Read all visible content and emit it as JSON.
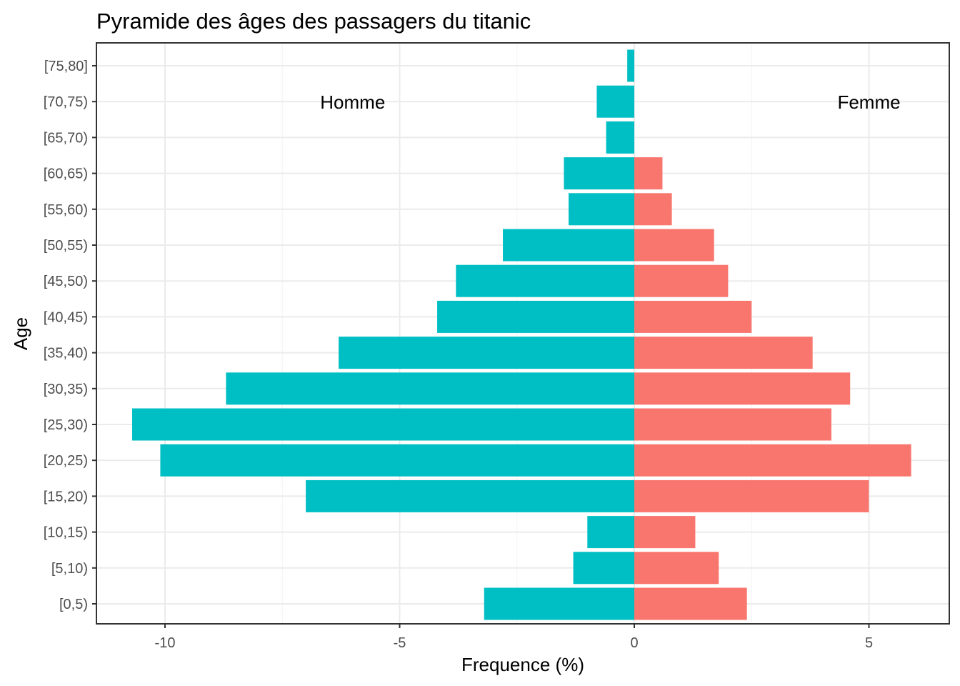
{
  "chart_data": {
    "type": "bar",
    "orientation": "horizontal",
    "title": "Pyramide des âges des passagers du titanic",
    "xlabel": "Frequence (%)",
    "ylabel": "Age",
    "xlim": [
      -12.3,
      6.6
    ],
    "x_ticks": [
      -10,
      -5,
      0,
      5
    ],
    "x_tick_labels": [
      "-10",
      "-5",
      "0",
      "5"
    ],
    "grid": true,
    "categories": [
      "[0,5)",
      "[5,10)",
      "[10,15)",
      "[15,20)",
      "[20,25)",
      "[25,30)",
      "[30,35)",
      "[35,40)",
      "[40,45)",
      "[45,50)",
      "[50,55)",
      "[55,60)",
      "[60,65)",
      "[65,70)",
      "[70,75)",
      "[75,80]"
    ],
    "series": [
      {
        "color": "#00BFC4",
        "values": [
          -3.2,
          -1.3,
          -1.0,
          -7.0,
          -10.1,
          -10.7,
          -8.7,
          -6.3,
          -4.2,
          -3.8,
          -2.8,
          -1.4,
          -1.5,
          -0.6,
          -0.8,
          -0.15
        ]
      },
      {
        "color": "#F8766D",
        "values": [
          2.4,
          1.8,
          1.3,
          5.0,
          5.9,
          4.2,
          4.6,
          3.8,
          2.5,
          2.0,
          1.7,
          0.8,
          0.6,
          0,
          0,
          0
        ]
      }
    ],
    "annotations": [
      {
        "text": "Homme",
        "x": -6.0,
        "y_category": "[70,75)"
      },
      {
        "text": "Femme",
        "x": 5.0,
        "y_category": "[70,75)"
      }
    ]
  }
}
